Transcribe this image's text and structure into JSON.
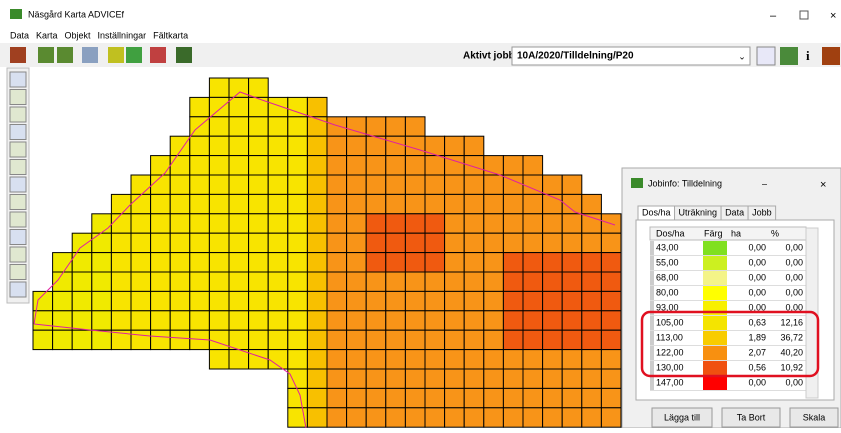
{
  "window": {
    "title": "Näsgård Karta ADVICEf"
  },
  "menu": [
    "Data",
    "Karta",
    "Objekt",
    "Inställningar",
    "Fältkarta"
  ],
  "toolbar": {
    "job_label": "Aktivt jobb",
    "job_value": "10A/2020/Tilldelning/P20"
  },
  "dialog": {
    "title": "Jobinfo: Tilldelning",
    "tabs": [
      "Dos/ha",
      "Uträkning",
      "Data",
      "Jobb"
    ],
    "table": {
      "header": [
        "Dos/ha",
        "Färg",
        "ha",
        "%"
      ],
      "rows": [
        {
          "dos": "43,00",
          "color": "#80e020",
          "ha": "0,00",
          "pct": "0,00"
        },
        {
          "dos": "55,00",
          "color": "#ccf020",
          "ha": "0,00",
          "pct": "0,00"
        },
        {
          "dos": "68,00",
          "color": "#f4f488",
          "ha": "0,00",
          "pct": "0,00"
        },
        {
          "dos": "80,00",
          "color": "#ffff00",
          "ha": "0,00",
          "pct": "0,00"
        },
        {
          "dos": "93,00",
          "color": "#f8f000",
          "ha": "0,00",
          "pct": "0,00"
        },
        {
          "dos": "105,00",
          "color": "#f4e400",
          "ha": "0,63",
          "pct": "12,16"
        },
        {
          "dos": "113,00",
          "color": "#f8cc00",
          "ha": "1,89",
          "pct": "36,72"
        },
        {
          "dos": "122,00",
          "color": "#f89010",
          "ha": "2,07",
          "pct": "40,20"
        },
        {
          "dos": "130,00",
          "color": "#f05010",
          "ha": "0,56",
          "pct": "10,92"
        },
        {
          "dos": "147,00",
          "color": "#ff0000",
          "ha": "0,00",
          "pct": "0,00"
        }
      ]
    },
    "buttons": [
      "Lägga till",
      "Ta Bort",
      "Skala"
    ]
  }
}
